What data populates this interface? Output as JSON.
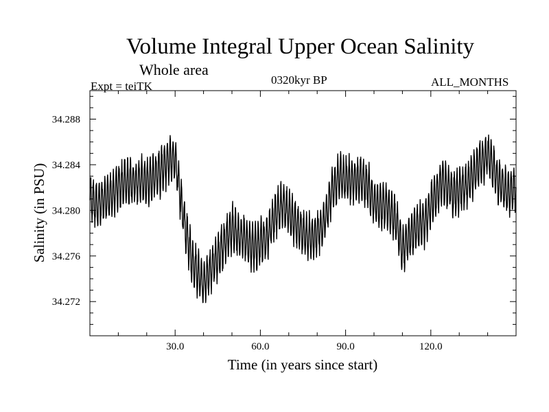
{
  "header": {
    "title": "Volume Integral Upper Ocean Salinity",
    "subtitle": "Whole area",
    "experiment": "Expt = teiTK",
    "period": "0320kyr BP",
    "months": "ALL_MONTHS"
  },
  "chart_data": {
    "type": "line",
    "title": "Volume Integral Upper Ocean Salinity",
    "xlabel": "Time (in years since start)",
    "ylabel": "Salinity (in PSU)",
    "xlim": [
      0,
      150
    ],
    "ylim": [
      34.269,
      34.2905
    ],
    "x_ticks": [
      30,
      60,
      90,
      120
    ],
    "x_tick_labels": [
      "30.0",
      "60.0",
      "90.0",
      "120.0"
    ],
    "y_ticks": [
      34.272,
      34.276,
      34.28,
      34.284,
      34.288
    ],
    "y_tick_labels": [
      "34.272",
      "34.276",
      "34.280",
      "34.284",
      "34.288"
    ],
    "grid": false,
    "series": [
      {
        "name": "salinity",
        "seasonal_cycle_amplitude_psu": 0.0018,
        "trend": {
          "x": [
            0,
            3,
            8,
            12,
            18,
            22,
            25,
            28,
            30,
            32,
            34,
            36,
            38,
            40,
            42,
            44,
            47,
            50,
            54,
            58,
            62,
            65,
            68,
            72,
            75,
            78,
            82,
            85,
            88,
            92,
            95,
            98,
            100,
            104,
            108,
            110,
            112,
            115,
            118,
            120,
            124,
            128,
            132,
            136,
            140,
            144,
            147,
            150
          ],
          "y": [
            34.281,
            34.2805,
            34.2815,
            34.2825,
            34.2825,
            34.2828,
            34.2835,
            34.2845,
            34.2845,
            34.281,
            34.278,
            34.2755,
            34.2745,
            34.2735,
            34.2745,
            34.2755,
            34.277,
            34.2785,
            34.2775,
            34.2768,
            34.2775,
            34.2795,
            34.2805,
            34.279,
            34.278,
            34.2775,
            34.2785,
            34.2815,
            34.283,
            34.2825,
            34.283,
            34.282,
            34.2805,
            34.2805,
            34.279,
            34.2765,
            34.2775,
            34.2785,
            34.279,
            34.2805,
            34.2825,
            34.2815,
            34.282,
            34.2835,
            34.285,
            34.2825,
            34.2815,
            34.282
          ]
        }
      }
    ]
  }
}
